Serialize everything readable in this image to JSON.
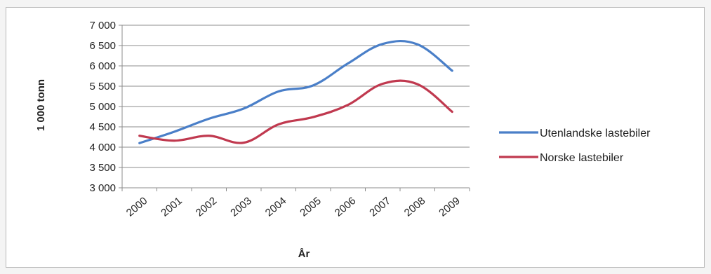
{
  "chart_data": {
    "type": "line",
    "title": "",
    "xlabel": "År",
    "ylabel": "1 000 tonn",
    "categories": [
      "2000",
      "2001",
      "2002",
      "2003",
      "2004",
      "2005",
      "2006",
      "2007",
      "2008",
      "2009"
    ],
    "ytick_labels": [
      "7 000",
      "6 500",
      "6 000",
      "5 500",
      "5 000",
      "4 500",
      "4 000",
      "3 500",
      "3 000"
    ],
    "yticks": [
      7000,
      6500,
      6000,
      5500,
      5000,
      4500,
      4000,
      3500,
      3000
    ],
    "ylim": [
      3000,
      7000
    ],
    "grid": true,
    "legend": "right",
    "series": [
      {
        "name": "Utenlandske lastebiler",
        "color": "#4a7fc8",
        "values": [
          4100,
          4380,
          4700,
          4950,
          5370,
          5520,
          6060,
          6540,
          6530,
          5880
        ]
      },
      {
        "name": "Norske lastebiler",
        "color": "#c0394f",
        "values": [
          4280,
          4160,
          4280,
          4110,
          4560,
          4740,
          5040,
          5560,
          5550,
          4870
        ]
      }
    ]
  }
}
